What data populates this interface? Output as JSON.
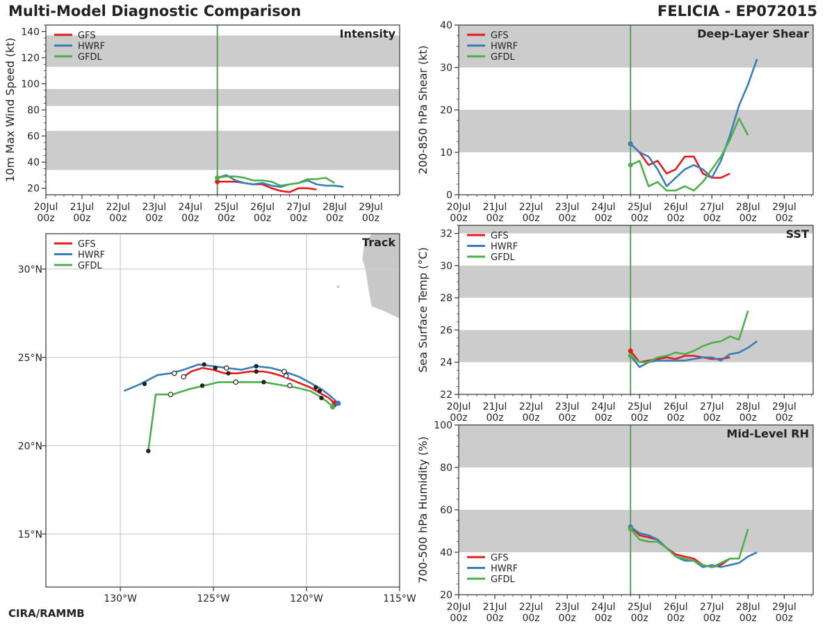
{
  "header": {
    "title": "Multi-Model Diagnostic Comparison",
    "storm": "FELICIA - EP072015",
    "credit": "CIRA/RAMMB"
  },
  "legend_entries": [
    "GFS",
    "HWRF",
    "GFDL"
  ],
  "colors": {
    "GFS": "#e41a1c",
    "HWRF": "#377eb8",
    "GFDL": "#4daf4a",
    "shade": "#cccccc",
    "init_line": "#5a9e5a",
    "grid": "#cccccc",
    "land": "#c8c8c8"
  },
  "chart_data": [
    {
      "id": "intensity",
      "type": "line",
      "title": "Intensity",
      "ylabel": "10m Max Wind Speed (kt)",
      "xlabel": "",
      "xlim": [
        0,
        9.8
      ],
      "ylim": [
        15,
        145
      ],
      "xticks": [
        0,
        1,
        2,
        3,
        4,
        5,
        6,
        7,
        8,
        9
      ],
      "xtick_labels": [
        "20Jul\n00z",
        "21Jul\n00z",
        "22Jul\n00z",
        "23Jul\n00z",
        "24Jul\n00z",
        "25Jul\n00z",
        "26Jul\n00z",
        "27Jul\n00z",
        "28Jul\n00z",
        "29Jul\n00z"
      ],
      "yticks": [
        20,
        40,
        60,
        80,
        100,
        120,
        140
      ],
      "ytick_labels": [
        "20",
        "40",
        "60",
        "80",
        "100",
        "120",
        "140"
      ],
      "bands": [
        [
          34,
          64
        ],
        [
          83,
          96
        ],
        [
          113,
          137
        ]
      ],
      "init_x": 4.75,
      "legend": "top-left",
      "series": [
        {
          "name": "GFS",
          "x": [
            4.75,
            5.0,
            5.25,
            5.5,
            5.75,
            6.0,
            6.25,
            6.5,
            6.75,
            7.0,
            7.25,
            7.5
          ],
          "y": [
            25,
            25,
            25,
            24,
            23,
            23,
            20,
            18,
            17,
            20,
            20,
            19
          ]
        },
        {
          "name": "HWRF",
          "x": [
            4.75,
            5.0,
            5.25,
            5.5,
            5.75,
            6.0,
            6.25,
            6.5,
            6.75,
            7.0,
            7.25,
            7.5,
            7.75,
            8.0,
            8.25
          ],
          "y": [
            28,
            30,
            26,
            24,
            23,
            24,
            22,
            21,
            23,
            24,
            26,
            23,
            22,
            22,
            21
          ]
        },
        {
          "name": "GFDL",
          "x": [
            4.75,
            5.0,
            5.25,
            5.5,
            5.75,
            6.0,
            6.25,
            6.5,
            6.75,
            7.0,
            7.25,
            7.5,
            7.75,
            8.0
          ],
          "y": [
            28,
            29,
            29,
            28,
            26,
            26,
            25,
            22,
            23,
            24,
            27,
            27,
            28,
            24
          ]
        }
      ]
    },
    {
      "id": "shear",
      "type": "line",
      "title": "Deep-Layer Shear",
      "ylabel": "200-850 hPa Shear (kt)",
      "xlabel": "",
      "xlim": [
        0,
        9.8
      ],
      "ylim": [
        0,
        40
      ],
      "xticks": [
        0,
        1,
        2,
        3,
        4,
        5,
        6,
        7,
        8,
        9
      ],
      "xtick_labels": [
        "20Jul\n00z",
        "21Jul\n00z",
        "22Jul\n00z",
        "23Jul\n00z",
        "24Jul\n00z",
        "25Jul\n00z",
        "26Jul\n00z",
        "27Jul\n00z",
        "28Jul\n00z",
        "29Jul\n00z"
      ],
      "yticks": [
        0,
        10,
        20,
        30,
        40
      ],
      "ytick_labels": [
        "0",
        "10",
        "20",
        "30",
        "40"
      ],
      "bands": [
        [
          10,
          20
        ],
        [
          30,
          40
        ]
      ],
      "init_x": 4.75,
      "legend": "top-left",
      "series": [
        {
          "name": "GFS",
          "x": [
            4.75,
            5.0,
            5.25,
            5.5,
            5.75,
            6.0,
            6.25,
            6.5,
            6.75,
            7.0,
            7.25,
            7.5
          ],
          "y": [
            12,
            10,
            7,
            8,
            5,
            6,
            9,
            9,
            5,
            4,
            4,
            5
          ]
        },
        {
          "name": "HWRF",
          "x": [
            4.75,
            5.0,
            5.25,
            5.5,
            5.75,
            6.0,
            6.25,
            6.5,
            6.75,
            7.0,
            7.25,
            7.5,
            7.75,
            8.0,
            8.25
          ],
          "y": [
            12,
            10,
            9,
            6,
            2,
            4,
            6,
            7,
            6,
            4,
            8,
            14,
            21,
            26,
            32
          ]
        },
        {
          "name": "GFDL",
          "x": [
            4.75,
            5.0,
            5.25,
            5.5,
            5.75,
            6.0,
            6.25,
            6.5,
            6.75,
            7.0,
            7.25,
            7.5,
            7.75,
            8.0
          ],
          "y": [
            7,
            8,
            2,
            3,
            1,
            1,
            2,
            1,
            3,
            6,
            9,
            13,
            18,
            14
          ]
        }
      ]
    },
    {
      "id": "sst",
      "type": "line",
      "title": "SST",
      "ylabel": "Sea Surface Temp (°C)",
      "xlabel": "",
      "xlim": [
        0,
        9.8
      ],
      "ylim": [
        22,
        32.5
      ],
      "xticks": [
        0,
        1,
        2,
        3,
        4,
        5,
        6,
        7,
        8,
        9
      ],
      "xtick_labels": [
        "20Jul\n00z",
        "21Jul\n00z",
        "22Jul\n00z",
        "23Jul\n00z",
        "24Jul\n00z",
        "25Jul\n00z",
        "26Jul\n00z",
        "27Jul\n00z",
        "28Jul\n00z",
        "29Jul\n00z"
      ],
      "yticks": [
        22,
        24,
        26,
        28,
        30,
        32
      ],
      "ytick_labels": [
        "22",
        "24",
        "26",
        "28",
        "30",
        "32"
      ],
      "bands": [
        [
          24,
          26
        ],
        [
          28,
          30
        ],
        [
          32,
          32.5
        ]
      ],
      "init_x": 4.75,
      "legend": "top-left",
      "series": [
        {
          "name": "GFS",
          "x": [
            4.75,
            5.0,
            5.25,
            5.5,
            5.75,
            6.0,
            6.25,
            6.5,
            6.75,
            7.0,
            7.25,
            7.5
          ],
          "y": [
            24.7,
            24.0,
            24.1,
            24.2,
            24.3,
            24.2,
            24.4,
            24.4,
            24.3,
            24.2,
            24.2,
            24.3
          ]
        },
        {
          "name": "HWRF",
          "x": [
            4.75,
            5.0,
            5.25,
            5.5,
            5.75,
            6.0,
            6.25,
            6.5,
            6.75,
            7.0,
            7.25,
            7.5,
            7.75,
            8.0,
            8.25
          ],
          "y": [
            24.4,
            23.7,
            24.0,
            24.1,
            24.1,
            24.1,
            24.1,
            24.2,
            24.3,
            24.3,
            24.1,
            24.5,
            24.6,
            24.9,
            25.3
          ]
        },
        {
          "name": "GFDL",
          "x": [
            4.75,
            5.0,
            5.25,
            5.5,
            5.75,
            6.0,
            6.25,
            6.5,
            6.75,
            7.0,
            7.25,
            7.5,
            7.75,
            8.0
          ],
          "y": [
            24.4,
            24.0,
            24.0,
            24.3,
            24.4,
            24.6,
            24.5,
            24.7,
            25.0,
            25.2,
            25.3,
            25.6,
            25.4,
            27.2
          ]
        }
      ]
    },
    {
      "id": "rh",
      "type": "line",
      "title": "Mid-Level RH",
      "ylabel": "700-500 hPa Humidity (%)",
      "xlabel": "",
      "xlim": [
        0,
        9.8
      ],
      "ylim": [
        20,
        100
      ],
      "xticks": [
        0,
        1,
        2,
        3,
        4,
        5,
        6,
        7,
        8,
        9
      ],
      "xtick_labels": [
        "20Jul\n00z",
        "21Jul\n00z",
        "22Jul\n00z",
        "23Jul\n00z",
        "24Jul\n00z",
        "25Jul\n00z",
        "26Jul\n00z",
        "27Jul\n00z",
        "28Jul\n00z",
        "29Jul\n00z"
      ],
      "yticks": [
        20,
        40,
        60,
        80,
        100
      ],
      "ytick_labels": [
        "20",
        "40",
        "60",
        "80",
        "100"
      ],
      "bands": [
        [
          40,
          60
        ],
        [
          80,
          100
        ]
      ],
      "init_x": 4.75,
      "legend": "bottom-left",
      "series": [
        {
          "name": "GFS",
          "x": [
            4.75,
            5.0,
            5.25,
            5.5,
            5.75,
            6.0,
            6.25,
            6.5,
            6.75,
            7.0,
            7.25,
            7.5
          ],
          "y": [
            52,
            48,
            47,
            46,
            42,
            39,
            38,
            37,
            34,
            33,
            34,
            37
          ]
        },
        {
          "name": "HWRF",
          "x": [
            4.75,
            5.0,
            5.25,
            5.5,
            5.75,
            6.0,
            6.25,
            6.5,
            6.75,
            7.0,
            7.25,
            7.5,
            7.75,
            8.0,
            8.25
          ],
          "y": [
            52,
            49,
            48,
            46,
            42,
            38,
            36,
            36,
            33,
            34,
            33,
            34,
            35,
            38,
            40
          ]
        },
        {
          "name": "GFDL",
          "x": [
            4.75,
            5.0,
            5.25,
            5.5,
            5.75,
            6.0,
            6.25,
            6.5,
            6.75,
            7.0,
            7.25,
            7.5,
            7.75,
            8.0
          ],
          "y": [
            51,
            46,
            45,
            45,
            42,
            38,
            37,
            36,
            34,
            33,
            35,
            37,
            37,
            51
          ]
        }
      ]
    },
    {
      "id": "track",
      "type": "scatter",
      "title": "Track",
      "xlabel": "",
      "ylabel": "",
      "xlim": [
        -134,
        -115
      ],
      "ylim": [
        12,
        32
      ],
      "xticks": [
        -130,
        -125,
        -120,
        -115
      ],
      "xtick_labels": [
        "130°W",
        "125°W",
        "120°W",
        "115°W"
      ],
      "yticks": [
        15,
        20,
        25,
        30
      ],
      "ytick_labels": [
        "15°N",
        "20°N",
        "25°N",
        "30°N"
      ],
      "grid": true,
      "legend": "top-left",
      "series": [
        {
          "name": "GFS",
          "lon": [
            -118.5,
            -118.8,
            -119.3,
            -119.8,
            -120.5,
            -121.2,
            -121.8,
            -122.3,
            -123.0,
            -123.7,
            -124.4,
            -125.0,
            -125.6,
            -126.2,
            -126.6
          ],
          "lat": [
            22.4,
            22.7,
            23.0,
            23.3,
            23.6,
            23.9,
            24.1,
            24.2,
            24.2,
            24.1,
            24.1,
            24.3,
            24.4,
            24.2,
            23.9
          ]
        },
        {
          "name": "HWRF",
          "lon": [
            -118.3,
            -118.7,
            -119.2,
            -119.7,
            -120.4,
            -121.2,
            -121.9,
            -122.7,
            -123.5,
            -124.3,
            -125.0,
            -125.8,
            -126.6,
            -127.3,
            -128.0,
            -128.9,
            -129.8
          ],
          "lat": [
            22.4,
            22.8,
            23.2,
            23.5,
            23.9,
            24.2,
            24.4,
            24.5,
            24.3,
            24.4,
            24.5,
            24.6,
            24.3,
            24.1,
            24.0,
            23.5,
            23.1
          ]
        },
        {
          "name": "GFDL",
          "lon": [
            -118.6,
            -118.9,
            -119.3,
            -119.8,
            -120.6,
            -121.2,
            -122.3,
            -123.3,
            -124.0,
            -124.7,
            -125.5,
            -126.3,
            -127.2,
            -128.1,
            -128.5
          ],
          "lat": [
            22.2,
            22.5,
            22.8,
            23.1,
            23.3,
            23.4,
            23.6,
            23.6,
            23.6,
            23.6,
            23.4,
            23.2,
            22.9,
            22.9,
            19.7
          ]
        }
      ],
      "markers": {
        "filled": [
          [
            -118.3,
            22.4
          ],
          [
            -118.5,
            22.3
          ],
          [
            -118.6,
            22.2
          ],
          [
            -119.2,
            22.7
          ],
          [
            -119.3,
            23.1
          ],
          [
            -119.5,
            23.3
          ],
          [
            -122.3,
            23.6
          ],
          [
            -122.7,
            24.2
          ],
          [
            -122.7,
            24.5
          ],
          [
            -124.2,
            24.1
          ],
          [
            -124.9,
            24.4
          ],
          [
            -125.5,
            24.6
          ],
          [
            -125.6,
            23.4
          ],
          [
            -128.7,
            23.5
          ],
          [
            -128.5,
            19.7
          ]
        ],
        "open": [
          [
            -120.9,
            23.4
          ],
          [
            -121.1,
            23.95
          ],
          [
            -121.2,
            24.2
          ],
          [
            -123.8,
            23.6
          ],
          [
            -124.3,
            24.4
          ],
          [
            -126.6,
            23.9
          ],
          [
            -127.1,
            24.1
          ],
          [
            -127.3,
            22.9
          ]
        ],
        "end_points": [
          {
            "name": "GFS",
            "lon": -118.5,
            "lat": 22.4
          },
          {
            "name": "HWRF",
            "lon": -118.3,
            "lat": 22.4
          },
          {
            "name": "GFDL",
            "lon": -118.6,
            "lat": 22.2
          }
        ]
      },
      "land": [
        [
          -116.5,
          32.0
        ],
        [
          -115.0,
          32.0
        ],
        [
          -115.0,
          27.2
        ],
        [
          -115.8,
          27.6
        ],
        [
          -116.5,
          27.9
        ],
        [
          -116.7,
          29.0
        ],
        [
          -116.8,
          29.8
        ],
        [
          -117.0,
          30.6
        ],
        [
          -116.9,
          31.4
        ],
        [
          -116.5,
          32.0
        ]
      ]
    }
  ]
}
